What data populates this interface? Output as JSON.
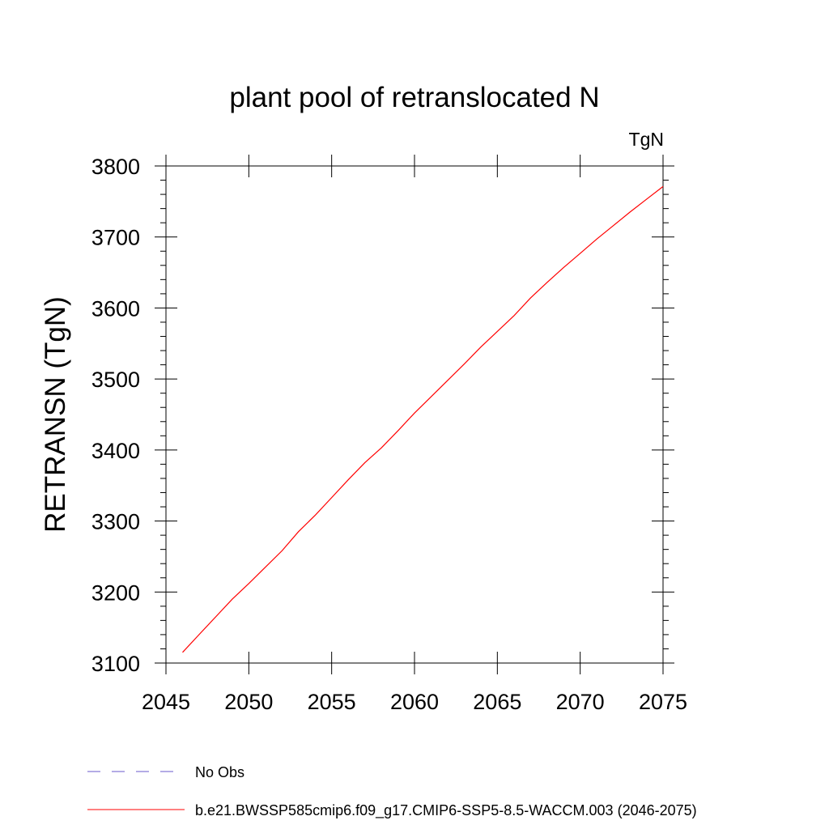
{
  "chart_data": {
    "type": "line",
    "title": "plant pool of retranslocated N",
    "units_label": "TgN",
    "xlabel": "",
    "ylabel": "RETRANSN  (TgN)",
    "xlim": [
      2045,
      2075
    ],
    "ylim": [
      3100,
      3800
    ],
    "x_ticks": [
      2045,
      2050,
      2055,
      2060,
      2065,
      2070,
      2075
    ],
    "y_ticks": [
      3100,
      3200,
      3300,
      3400,
      3500,
      3600,
      3700,
      3800
    ],
    "grid": false,
    "legend_position": "bottom-left",
    "series": [
      {
        "name": "b.e21.BWSSP585cmip6.f09_g17.CMIP6-SSP5-8.5-WACCM.003 (2046-2075)",
        "color": "#ff0000",
        "style": "solid",
        "x": [
          2046,
          2047,
          2048,
          2049,
          2050,
          2051,
          2052,
          2053,
          2054,
          2055,
          2056,
          2057,
          2058,
          2059,
          2060,
          2061,
          2062,
          2063,
          2064,
          2065,
          2066,
          2067,
          2068,
          2069,
          2070,
          2071,
          2072,
          2073,
          2074,
          2075
        ],
        "y": [
          3115,
          3140,
          3165,
          3190,
          3212,
          3235,
          3258,
          3285,
          3308,
          3333,
          3358,
          3382,
          3403,
          3427,
          3452,
          3475,
          3498,
          3521,
          3545,
          3567,
          3589,
          3614,
          3636,
          3657,
          3677,
          3697,
          3716,
          3735,
          3753,
          3771
        ]
      }
    ],
    "legend": [
      {
        "label": "No Obs",
        "color": "#6a5acd",
        "style": "dashed"
      },
      {
        "label": "b.e21.BWSSP585cmip6.f09_g17.CMIP6-SSP5-8.5-WACCM.003 (2046-2075)",
        "color": "#ff0000",
        "style": "solid"
      }
    ]
  }
}
